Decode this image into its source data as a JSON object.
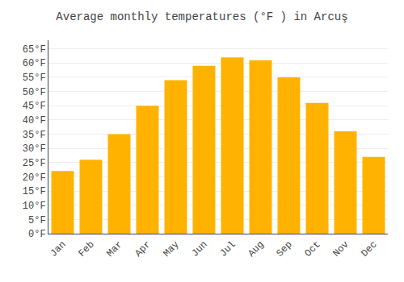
{
  "chart_data": {
    "type": "bar",
    "title": "Average monthly temperatures (°F ) in Arcuş",
    "categories": [
      "Jan",
      "Feb",
      "Mar",
      "Apr",
      "May",
      "Jun",
      "Jul",
      "Aug",
      "Sep",
      "Oct",
      "Nov",
      "Dec"
    ],
    "values": [
      22,
      26,
      35,
      45,
      54,
      59,
      62,
      61,
      55,
      46,
      36,
      27
    ],
    "color": "#FFB300",
    "ylim": [
      0,
      68
    ],
    "yticks": [
      {
        "value": 0,
        "label": "0°F"
      },
      {
        "value": 5,
        "label": "5°F"
      },
      {
        "value": 10,
        "label": "10°F"
      },
      {
        "value": 15,
        "label": "15°F"
      },
      {
        "value": 20,
        "label": "20°F"
      },
      {
        "value": 25,
        "label": "25°F"
      },
      {
        "value": 30,
        "label": "30°F"
      },
      {
        "value": 35,
        "label": "35°F"
      },
      {
        "value": 40,
        "label": "40°F"
      },
      {
        "value": 45,
        "label": "45°F"
      },
      {
        "value": 50,
        "label": "50°F"
      },
      {
        "value": 55,
        "label": "55°F"
      },
      {
        "value": 60,
        "label": "60°F"
      },
      {
        "value": 65,
        "label": "65°F"
      }
    ],
    "grid": true
  }
}
